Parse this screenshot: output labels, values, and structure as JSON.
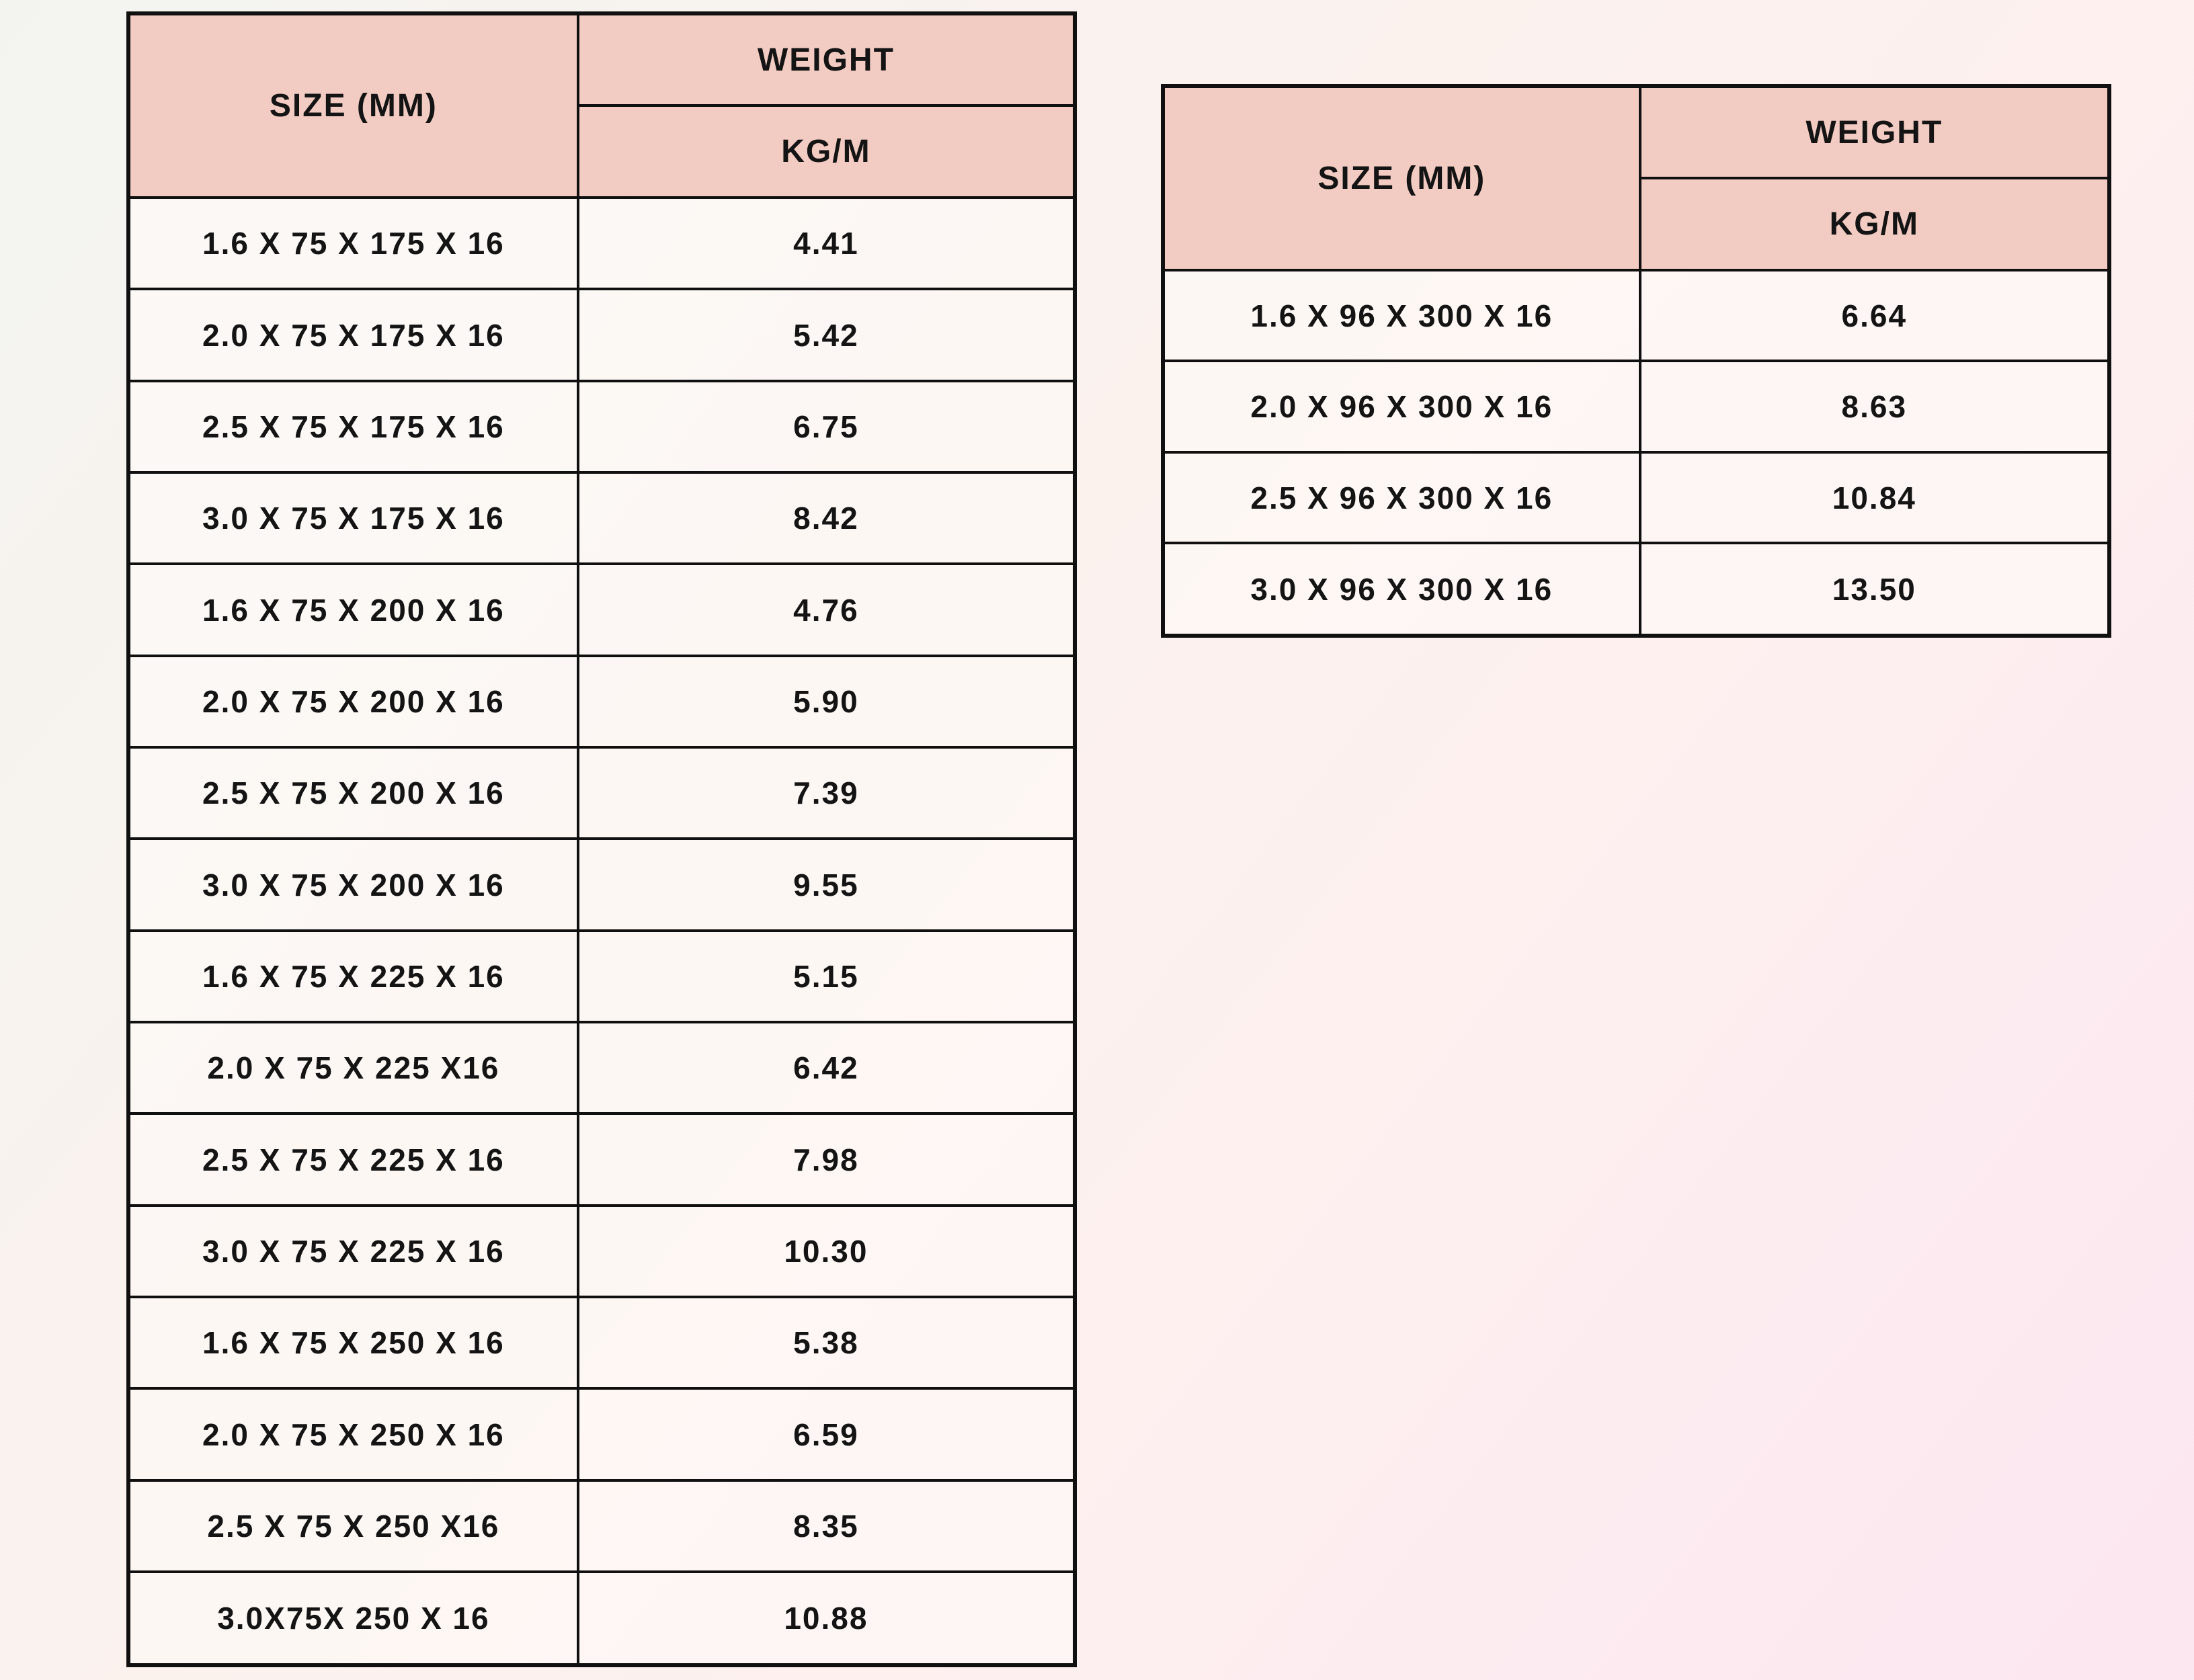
{
  "page": {
    "background_gradient_start": "#f3f4f0",
    "background_gradient_end": "#fce6f0"
  },
  "colors": {
    "header_bg": "#f2cbc2",
    "border": "#101010",
    "text": "#141414",
    "cell_bg": "#fdf4f0"
  },
  "tables": [
    {
      "name": "size-weight-table-left",
      "headers": {
        "size": "SIZE (MM)",
        "weight": "WEIGHT",
        "unit": "KG/M"
      },
      "rows": [
        {
          "size": "1.6 X 75 X 175 X 16",
          "kg_m": "4.41"
        },
        {
          "size": "2.0 X 75 X 175 X 16",
          "kg_m": "5.42"
        },
        {
          "size": "2.5 X 75 X 175 X 16",
          "kg_m": "6.75"
        },
        {
          "size": "3.0 X 75 X 175 X 16",
          "kg_m": "8.42"
        },
        {
          "size": "1.6 X 75 X 200 X 16",
          "kg_m": "4.76"
        },
        {
          "size": "2.0 X 75 X 200 X 16",
          "kg_m": "5.90"
        },
        {
          "size": "2.5 X 75 X 200 X 16",
          "kg_m": "7.39"
        },
        {
          "size": "3.0 X 75 X 200 X 16",
          "kg_m": "9.55"
        },
        {
          "size": "1.6 X 75 X 225 X 16",
          "kg_m": "5.15"
        },
        {
          "size": "2.0 X 75 X 225 X16",
          "kg_m": "6.42"
        },
        {
          "size": "2.5 X 75 X 225 X 16",
          "kg_m": "7.98"
        },
        {
          "size": "3.0 X 75 X 225 X 16",
          "kg_m": "10.30"
        },
        {
          "size": "1.6 X 75 X 250 X 16",
          "kg_m": "5.38"
        },
        {
          "size": "2.0 X 75 X 250 X 16",
          "kg_m": "6.59"
        },
        {
          "size": "2.5 X 75 X 250 X16",
          "kg_m": "8.35"
        },
        {
          "size": "3.0X75X 250 X 16",
          "kg_m": "10.88"
        }
      ]
    },
    {
      "name": "size-weight-table-right",
      "headers": {
        "size": "SIZE (MM)",
        "weight": "WEIGHT",
        "unit": "KG/M"
      },
      "rows": [
        {
          "size": "1.6 X 96 X 300 X 16",
          "kg_m": "6.64"
        },
        {
          "size": "2.0 X 96 X 300 X 16",
          "kg_m": "8.63"
        },
        {
          "size": "2.5 X 96 X 300 X 16",
          "kg_m": "10.84"
        },
        {
          "size": "3.0 X 96 X 300 X 16",
          "kg_m": "13.50"
        }
      ]
    }
  ]
}
